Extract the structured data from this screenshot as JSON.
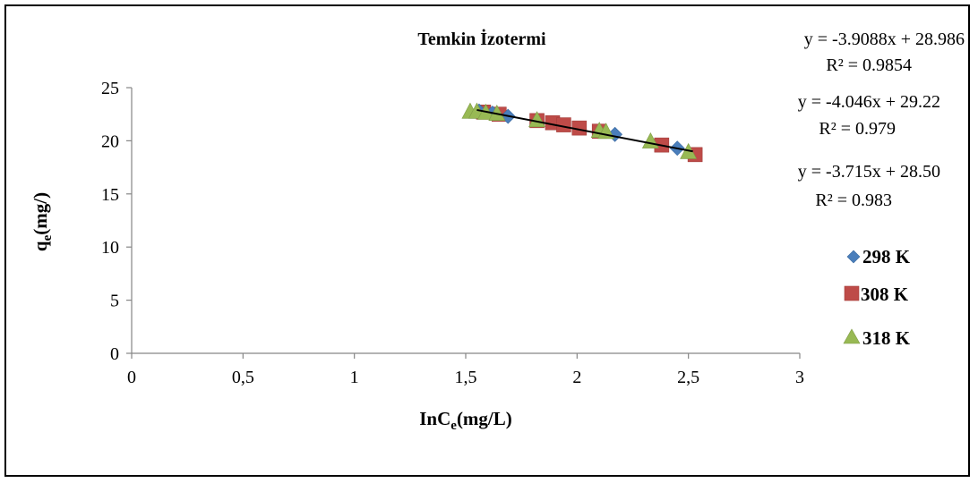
{
  "chart_data": {
    "type": "scatter",
    "title": "Temkin İzotermi",
    "xlabel_main": "InC",
    "xlabel_sub": "e",
    "xlabel_unit": "(mg/L)",
    "ylabel_main": "q",
    "ylabel_sub": "e",
    "ylabel_unit": "(mg/)",
    "xlim": [
      0,
      3
    ],
    "ylim": [
      0,
      25
    ],
    "x_ticks": [
      {
        "v": 0,
        "label": "0"
      },
      {
        "v": 0.5,
        "label": "0,5"
      },
      {
        "v": 1,
        "label": "1"
      },
      {
        "v": 1.5,
        "label": "1,5"
      },
      {
        "v": 2,
        "label": "2"
      },
      {
        "v": 2.5,
        "label": "2,5"
      },
      {
        "v": 3,
        "label": "3"
      }
    ],
    "y_ticks": [
      {
        "v": 0,
        "label": "0"
      },
      {
        "v": 5,
        "label": "5"
      },
      {
        "v": 10,
        "label": "10"
      },
      {
        "v": 15,
        "label": "15"
      },
      {
        "v": 20,
        "label": "20"
      },
      {
        "v": 25,
        "label": "25"
      }
    ],
    "grid": false,
    "legend_position": "right",
    "series": [
      {
        "name": "298 K",
        "marker": "diamond",
        "color": "#4a7ebb",
        "x": [
          1.56,
          1.62,
          1.69,
          2.17,
          2.45
        ],
        "y": [
          22.8,
          22.6,
          22.3,
          20.6,
          19.3
        ]
      },
      {
        "name": "308 K",
        "marker": "square",
        "color": "#be4b48",
        "x": [
          1.58,
          1.65,
          1.82,
          1.89,
          1.94,
          2.01,
          2.1,
          2.38,
          2.53
        ],
        "y": [
          22.7,
          22.5,
          21.9,
          21.7,
          21.5,
          21.2,
          20.9,
          19.6,
          18.7
        ]
      },
      {
        "name": "318 K",
        "marker": "triangle",
        "color": "#98b954",
        "x": [
          1.52,
          1.55,
          1.59,
          1.64,
          1.82,
          2.1,
          2.13,
          2.33,
          2.5
        ],
        "y": [
          22.7,
          22.7,
          22.6,
          22.5,
          21.9,
          20.9,
          20.8,
          19.9,
          18.9
        ]
      }
    ],
    "trendline": {
      "x": [
        1.55,
        2.52
      ],
      "y": [
        22.9,
        19.0
      ],
      "color": "#000000"
    },
    "equations": [
      {
        "eq": "y = -3.9088x + 28.986",
        "r2": "R² = 0.9854"
      },
      {
        "eq": "y = -4.046x + 29.22",
        "r2": "R² = 0.979"
      },
      {
        "eq": "y = -3.715x + 28.50",
        "r2": "R² = 0.983"
      }
    ]
  }
}
